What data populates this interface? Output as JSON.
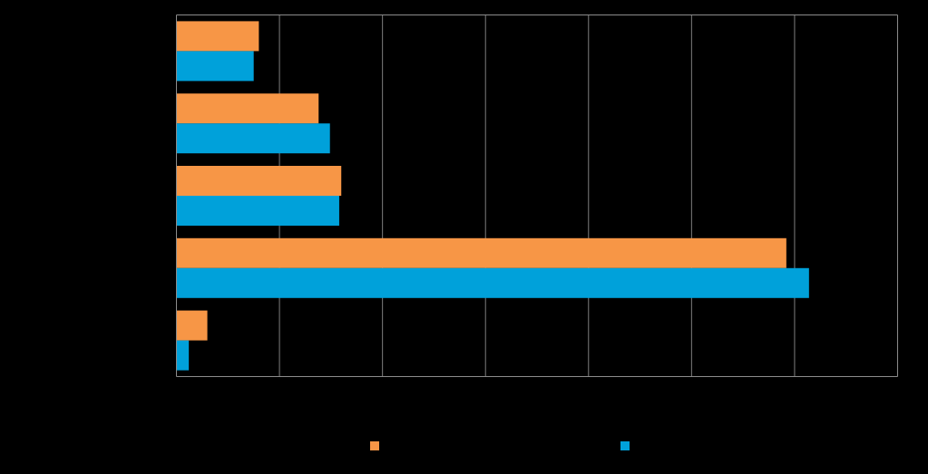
{
  "chart_data": {
    "type": "bar",
    "orientation": "horizontal",
    "title": "",
    "xlabel": "",
    "ylabel": "",
    "categories": [
      "",
      "",
      "",
      "",
      ""
    ],
    "xlim": [
      0,
      70
    ],
    "grid": true,
    "legend_placement": "bottom",
    "series": [
      {
        "color": "#F79646",
        "values": [
          8.0,
          13.8,
          16.0,
          59.2,
          3.0
        ]
      },
      {
        "color": "#00A1DA",
        "values": [
          7.5,
          14.9,
          15.8,
          61.4,
          1.2
        ]
      }
    ]
  }
}
